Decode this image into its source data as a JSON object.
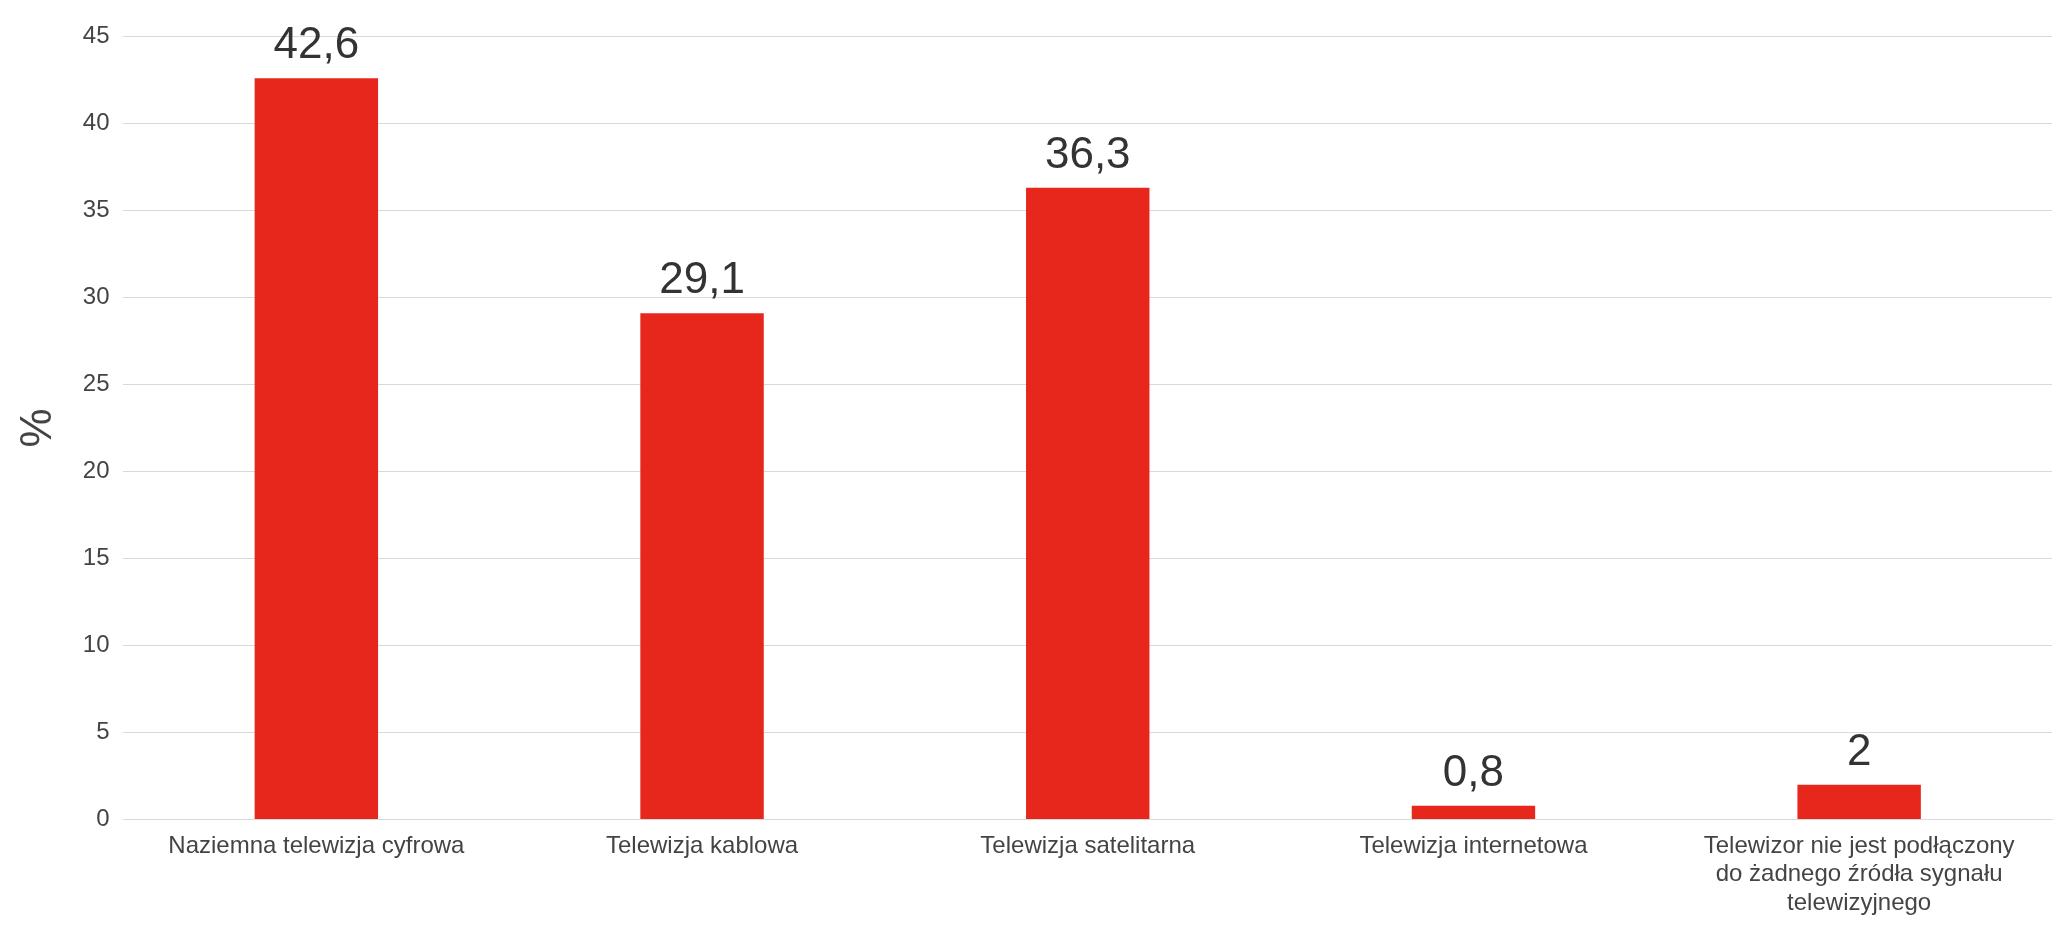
{
  "chart_data": {
    "type": "bar",
    "ylabel": "%",
    "categories": [
      "Naziemna telewizja cyfrowa",
      "Telewizja kablowa",
      "Telewizja satelitarna",
      "Telewizja internetowa",
      "Telewizor nie jest podłączony do żadnego źródła sygnału telewizyjnego"
    ],
    "values": [
      42.6,
      29.1,
      36.3,
      0.8,
      2
    ],
    "value_labels": [
      "42,6",
      "29,1",
      "36,3",
      "0,8",
      "2"
    ],
    "color": "#e8271c",
    "ylim": [
      0,
      45
    ],
    "yticks": [
      0,
      5,
      10,
      15,
      20,
      25,
      30,
      35,
      40,
      45
    ],
    "grid": "y",
    "legend": false
  }
}
